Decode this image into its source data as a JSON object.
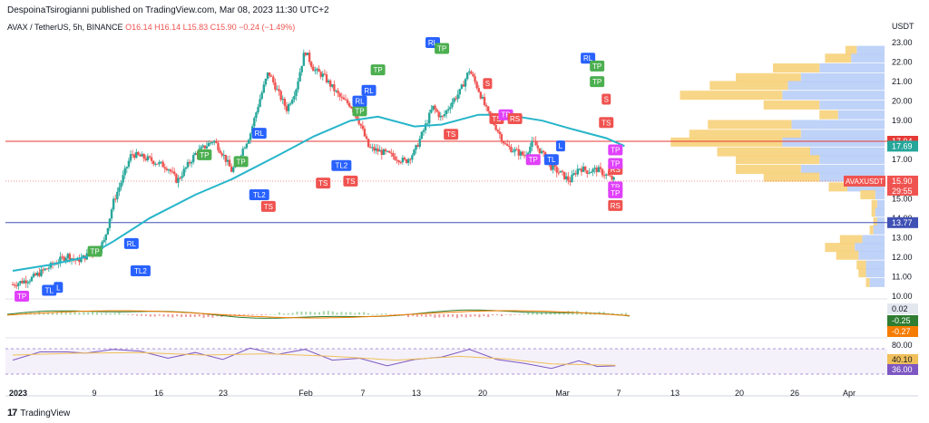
{
  "header": {
    "publisher_line": "DespoinaTsirogianni published on TradingView.com, Mar 08, 2023 11:30 UTC+2"
  },
  "symbol_line": {
    "name": "AVAX / TetherUS, 5h, BINANCE",
    "ohlc": "O16.14  H16.14  L15.83  C15.90  −0.24 (−1.49%)"
  },
  "branding": {
    "logo": "17",
    "name": "TradingView"
  },
  "colors": {
    "up": "#26a69a",
    "down": "#ef5350",
    "ma": "#26b5c9",
    "resistance": "#e53935",
    "support": "#3f51b5",
    "vp_up": "#b8cdf7",
    "vp_down": "#f7d27a",
    "rsi": "#7e57c2",
    "rsi_ma": "#f0c05a",
    "tag_tp": "#4caf50",
    "tag_tp2": "#e040fb",
    "tag_rl": "#2962ff",
    "tag_ts": "#ef5350"
  },
  "chart_data": [
    {
      "type": "candlestick",
      "title": "",
      "y_unit": "USDT",
      "y_axis_ticks": [
        "10.00",
        "11.00",
        "12.00",
        "13.00",
        "14.00",
        "15.00",
        "16.00",
        "17.00",
        "18.00",
        "19.00",
        "20.00",
        "21.00",
        "22.00",
        "23.00"
      ],
      "ylim": [
        10,
        23.4
      ],
      "x_axis_ticks": [
        "2023",
        "9",
        "16",
        "23",
        "Feb",
        "7",
        "13",
        "20",
        "Mar",
        "7",
        "13",
        "20",
        "26",
        "Apr"
      ],
      "x_domain": [
        "2023-01-01",
        "2023-04-03"
      ],
      "price_path": [
        [
          "2023-01-01",
          10.6
        ],
        [
          "2023-01-03",
          10.9
        ],
        [
          "2023-01-05",
          11.5
        ],
        [
          "2023-01-07",
          12.1
        ],
        [
          "2023-01-08",
          11.8
        ],
        [
          "2023-01-10",
          12.3
        ],
        [
          "2023-01-11",
          12.8
        ],
        [
          "2023-01-12",
          14.8
        ],
        [
          "2023-01-13",
          16.0
        ],
        [
          "2023-01-14",
          17.3
        ],
        [
          "2023-01-16",
          17.0
        ],
        [
          "2023-01-18",
          16.6
        ],
        [
          "2023-01-19",
          15.9
        ],
        [
          "2023-01-21",
          17.3
        ],
        [
          "2023-01-23",
          18.0
        ],
        [
          "2023-01-24",
          17.3
        ],
        [
          "2023-01-25",
          16.4
        ],
        [
          "2023-01-27",
          18.3
        ],
        [
          "2023-01-28",
          20.0
        ],
        [
          "2023-01-29",
          21.5
        ],
        [
          "2023-01-30",
          20.5
        ],
        [
          "2023-01-31",
          19.6
        ],
        [
          "2023-02-01",
          20.6
        ],
        [
          "2023-02-02",
          22.6
        ],
        [
          "2023-02-03",
          21.6
        ],
        [
          "2023-02-04",
          21.3
        ],
        [
          "2023-02-05",
          20.7
        ],
        [
          "2023-02-06",
          20.1
        ],
        [
          "2023-02-07",
          19.8
        ],
        [
          "2023-02-08",
          18.9
        ],
        [
          "2023-02-09",
          17.6
        ],
        [
          "2023-02-11",
          17.3
        ],
        [
          "2023-02-13",
          16.9
        ],
        [
          "2023-02-14",
          17.4
        ],
        [
          "2023-02-15",
          18.5
        ],
        [
          "2023-02-16",
          19.7
        ],
        [
          "2023-02-17",
          19.1
        ],
        [
          "2023-02-18",
          19.9
        ],
        [
          "2023-02-19",
          20.5
        ],
        [
          "2023-02-20",
          21.6
        ],
        [
          "2023-02-21",
          20.6
        ],
        [
          "2023-02-22",
          19.4
        ],
        [
          "2023-02-23",
          18.6
        ],
        [
          "2023-02-24",
          17.7
        ],
        [
          "2023-02-26",
          17.2
        ],
        [
          "2023-02-27",
          17.9
        ],
        [
          "2023-02-28",
          17.3
        ],
        [
          "2023-03-01",
          16.6
        ],
        [
          "2023-03-02",
          16.3
        ],
        [
          "2023-03-03",
          15.9
        ],
        [
          "2023-03-04",
          16.6
        ],
        [
          "2023-03-05",
          16.4
        ],
        [
          "2023-03-06",
          16.5
        ],
        [
          "2023-03-07",
          16.2
        ],
        [
          "2023-03-08",
          15.9
        ]
      ],
      "moving_average": [
        [
          "2023-01-01",
          11.3
        ],
        [
          "2023-01-05",
          11.6
        ],
        [
          "2023-01-09",
          12.0
        ],
        [
          "2023-01-12",
          12.8
        ],
        [
          "2023-01-16",
          14.0
        ],
        [
          "2023-01-21",
          15.2
        ],
        [
          "2023-01-25",
          16.0
        ],
        [
          "2023-01-30",
          17.2
        ],
        [
          "2023-02-03",
          18.2
        ],
        [
          "2023-02-07",
          19.0
        ],
        [
          "2023-02-10",
          19.2
        ],
        [
          "2023-02-14",
          18.7
        ],
        [
          "2023-02-17",
          18.8
        ],
        [
          "2023-02-21",
          19.3
        ],
        [
          "2023-02-24",
          19.3
        ],
        [
          "2023-02-28",
          19.0
        ],
        [
          "2023-03-03",
          18.6
        ],
        [
          "2023-03-07",
          18.1
        ],
        [
          "2023-03-09",
          17.7
        ]
      ],
      "horizontal_lines": [
        {
          "price": 17.94,
          "label": "17.94",
          "color": "#e53935"
        },
        {
          "price": 13.77,
          "label": "13.77",
          "color": "#3f51b5"
        }
      ],
      "price_labels": [
        {
          "price": 17.94,
          "label": "17.94",
          "color": "#e53935"
        },
        {
          "price": 17.69,
          "label": "17.69",
          "color": "#26a69a"
        },
        {
          "price": 15.9,
          "label": "15.90",
          "sub": "29:55",
          "color": "#ef5350"
        },
        {
          "price": 13.77,
          "label": "13.77",
          "color": "#3f51b5"
        }
      ],
      "last_price_tag": {
        "symbol": "AVAXUSDT",
        "price": 15.9
      },
      "signal_tags": [
        {
          "date": "2023-01-02",
          "price": 10.0,
          "text": "TP",
          "kind": "tp2"
        },
        {
          "date": "2023-01-05",
          "price": 10.3,
          "text": "TL",
          "kind": "rl"
        },
        {
          "date": "2023-01-06",
          "price": 10.45,
          "text": "L",
          "kind": "rl"
        },
        {
          "date": "2023-01-10",
          "price": 12.3,
          "text": "TP",
          "kind": "tp"
        },
        {
          "date": "2023-01-14",
          "price": 12.7,
          "text": "RL",
          "kind": "rl"
        },
        {
          "date": "2023-01-15",
          "price": 11.3,
          "text": "TL2",
          "kind": "rl"
        },
        {
          "date": "2023-01-22",
          "price": 17.25,
          "text": "TP",
          "kind": "tp"
        },
        {
          "date": "2023-01-26",
          "price": 16.9,
          "text": "TP",
          "kind": "tp"
        },
        {
          "date": "2023-01-28",
          "price": 18.35,
          "text": "RL",
          "kind": "rl"
        },
        {
          "date": "2023-01-28",
          "price": 15.2,
          "text": "TL2",
          "kind": "rl"
        },
        {
          "date": "2023-01-29",
          "price": 14.6,
          "text": "TS",
          "kind": "ts"
        },
        {
          "date": "2023-02-04",
          "price": 15.8,
          "text": "TS",
          "kind": "ts"
        },
        {
          "date": "2023-02-06",
          "price": 16.7,
          "text": "TL2",
          "kind": "rl"
        },
        {
          "date": "2023-02-07",
          "price": 15.9,
          "text": "TS",
          "kind": "ts"
        },
        {
          "date": "2023-02-08",
          "price": 19.5,
          "text": "TP",
          "kind": "tp"
        },
        {
          "date": "2023-02-08",
          "price": 20.0,
          "text": "RL",
          "kind": "rl"
        },
        {
          "date": "2023-02-09",
          "price": 20.55,
          "text": "RL",
          "kind": "rl"
        },
        {
          "date": "2023-02-10",
          "price": 21.6,
          "text": "TP",
          "kind": "tp"
        },
        {
          "date": "2023-02-16",
          "price": 23.0,
          "text": "RL",
          "kind": "rl"
        },
        {
          "date": "2023-02-17",
          "price": 22.7,
          "text": "TP",
          "kind": "tp"
        },
        {
          "date": "2023-02-18",
          "price": 18.3,
          "text": "TS",
          "kind": "ts"
        },
        {
          "date": "2023-02-22",
          "price": 20.9,
          "text": "S",
          "kind": "ts"
        },
        {
          "date": "2023-02-23",
          "price": 19.1,
          "text": "TS",
          "kind": "ts"
        },
        {
          "date": "2023-02-24",
          "price": 19.3,
          "text": "TP",
          "kind": "tp2"
        },
        {
          "date": "2023-02-25",
          "price": 19.1,
          "text": "RS",
          "kind": "ts"
        },
        {
          "date": "2023-02-27",
          "price": 17.0,
          "text": "TP",
          "kind": "tp2"
        },
        {
          "date": "2023-03-01",
          "price": 17.0,
          "text": "TL",
          "kind": "rl"
        },
        {
          "date": "2023-03-02",
          "price": 17.7,
          "text": "L",
          "kind": "rl"
        },
        {
          "date": "2023-03-05",
          "price": 22.2,
          "text": "RL",
          "kind": "rl"
        },
        {
          "date": "2023-03-06",
          "price": 21.8,
          "text": "TP",
          "kind": "tp"
        },
        {
          "date": "2023-03-06",
          "price": 21.0,
          "text": "TP",
          "kind": "tp"
        },
        {
          "date": "2023-03-07",
          "price": 20.1,
          "text": "S",
          "kind": "ts"
        },
        {
          "date": "2023-03-07",
          "price": 18.9,
          "text": "TS",
          "kind": "ts"
        },
        {
          "date": "2023-03-08",
          "price": 17.5,
          "text": "TP",
          "kind": "tp2"
        },
        {
          "date": "2023-03-08",
          "price": 16.5,
          "text": "RS",
          "kind": "ts"
        },
        {
          "date": "2023-03-08",
          "price": 16.8,
          "text": "TP",
          "kind": "tp2"
        },
        {
          "date": "2023-03-08",
          "price": 15.6,
          "text": "TP",
          "kind": "tp2"
        },
        {
          "date": "2023-03-08",
          "price": 15.3,
          "text": "TP",
          "kind": "tp2"
        },
        {
          "date": "2023-03-08",
          "price": 14.65,
          "text": "RS",
          "kind": "ts"
        }
      ],
      "volume_profile": [
        {
          "price": 22.6,
          "up": 0.15,
          "down": 0.06
        },
        {
          "price": 22.2,
          "up": 0.18,
          "down": 0.14
        },
        {
          "price": 21.7,
          "up": 0.35,
          "down": 0.25
        },
        {
          "price": 21.2,
          "up": 0.45,
          "down": 0.35
        },
        {
          "price": 20.8,
          "up": 0.52,
          "down": 0.42
        },
        {
          "price": 20.3,
          "up": 0.55,
          "down": 0.55
        },
        {
          "price": 19.8,
          "up": 0.35,
          "down": 0.3
        },
        {
          "price": 19.3,
          "up": 0.25,
          "down": 0.1
        },
        {
          "price": 18.8,
          "up": 0.5,
          "down": 0.45
        },
        {
          "price": 18.3,
          "up": 0.45,
          "down": 0.6
        },
        {
          "price": 17.9,
          "up": 0.55,
          "down": 0.6
        },
        {
          "price": 17.4,
          "up": 0.4,
          "down": 0.5
        },
        {
          "price": 17.0,
          "up": 0.35,
          "down": 0.45
        },
        {
          "price": 16.5,
          "up": 0.45,
          "down": 0.35
        },
        {
          "price": 16.1,
          "up": 0.35,
          "down": 0.3
        },
        {
          "price": 15.6,
          "up": 0.2,
          "down": 0.1
        },
        {
          "price": 15.2,
          "up": 0.05,
          "down": 0.08
        },
        {
          "price": 14.7,
          "up": 0.04,
          "down": 0.03
        },
        {
          "price": 14.3,
          "up": 0.05,
          "down": 0.02
        },
        {
          "price": 13.8,
          "up": 0.04,
          "down": 0.02
        },
        {
          "price": 13.4,
          "up": 0.06,
          "down": 0.02
        },
        {
          "price": 12.9,
          "up": 0.12,
          "down": 0.12
        },
        {
          "price": 12.5,
          "up": 0.16,
          "down": 0.16
        },
        {
          "price": 12.1,
          "up": 0.14,
          "down": 0.12
        },
        {
          "price": 11.6,
          "up": 0.1,
          "down": 0.05
        },
        {
          "price": 11.2,
          "up": 0.1,
          "down": 0.04
        },
        {
          "price": 10.7,
          "up": 0.08,
          "down": 0.02
        }
      ]
    },
    {
      "type": "line",
      "title": "",
      "indicator": "MACD",
      "value_labels": [
        {
          "label": "0.02",
          "color": "#e3e8ef",
          "text_color": "#131722"
        },
        {
          "label": "-0.25",
          "color": "#2e7d32",
          "text_color": "#ffffff"
        },
        {
          "label": "-0.27",
          "color": "#f57c00",
          "text_color": "#ffffff"
        }
      ]
    },
    {
      "type": "line",
      "title": "",
      "indicator": "RSI",
      "y_axis_ticks": [
        "80.00"
      ],
      "value_labels": [
        {
          "label": "40.10",
          "color": "#f0c05a",
          "text_color": "#131722"
        },
        {
          "label": "36.00",
          "color": "#7e57c2",
          "text_color": "#ffffff"
        }
      ],
      "rsi_path": [
        [
          "2023-01-01",
          55
        ],
        [
          "2023-01-04",
          62
        ],
        [
          "2023-01-07",
          68
        ],
        [
          "2023-01-09",
          60
        ],
        [
          "2023-01-12",
          72
        ],
        [
          "2023-01-15",
          63
        ],
        [
          "2023-01-18",
          58
        ],
        [
          "2023-01-21",
          61
        ],
        [
          "2023-01-24",
          56
        ],
        [
          "2023-01-27",
          68
        ],
        [
          "2023-01-30",
          64
        ],
        [
          "2023-02-02",
          66
        ],
        [
          "2023-02-05",
          55
        ],
        [
          "2023-02-08",
          52
        ],
        [
          "2023-02-11",
          46
        ],
        [
          "2023-02-14",
          50
        ],
        [
          "2023-02-17",
          60
        ],
        [
          "2023-02-20",
          66
        ],
        [
          "2023-02-23",
          56
        ],
        [
          "2023-02-26",
          44
        ],
        [
          "2023-03-01",
          42
        ],
        [
          "2023-03-04",
          48
        ],
        [
          "2023-03-06",
          45
        ],
        [
          "2023-03-08",
          40
        ]
      ],
      "rsi_ma_path": [
        [
          "2023-01-01",
          60
        ],
        [
          "2023-01-08",
          63
        ],
        [
          "2023-01-15",
          64
        ],
        [
          "2023-01-22",
          60
        ],
        [
          "2023-01-29",
          62
        ],
        [
          "2023-02-05",
          58
        ],
        [
          "2023-02-12",
          52
        ],
        [
          "2023-02-19",
          58
        ],
        [
          "2023-02-24",
          54
        ],
        [
          "2023-03-01",
          46
        ],
        [
          "2023-03-08",
          44
        ]
      ]
    }
  ]
}
